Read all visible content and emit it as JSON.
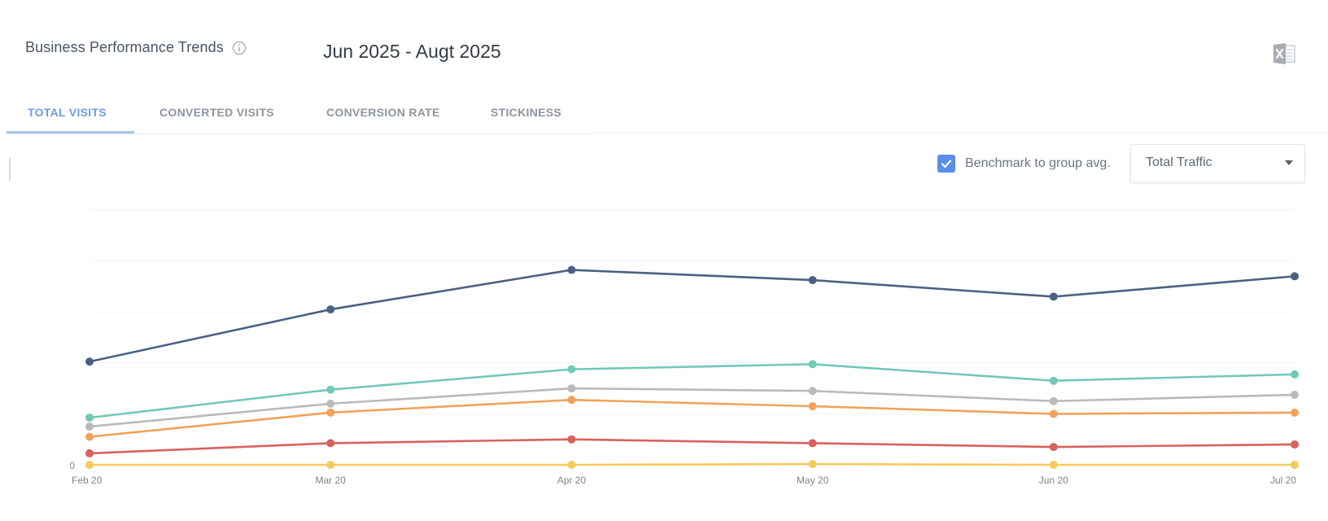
{
  "header": {
    "title": "Business Performance Trends",
    "date_range": "Jun 2025 - Augt 2025"
  },
  "icons": {
    "info": "info-icon",
    "export": "excel-export-icon",
    "checkbox": "check-icon",
    "dropdown": "chevron-down-icon"
  },
  "tabs": [
    {
      "label": "TOTAL VISITS",
      "active": true
    },
    {
      "label": "CONVERTED VISITS",
      "active": false
    },
    {
      "label": "CONVERSION RATE",
      "active": false
    },
    {
      "label": "STICKINESS",
      "active": false
    }
  ],
  "controls": {
    "benchmark_label": "Benchmark to group avg.",
    "benchmark_checked": true,
    "traffic_select_value": "Total Traffic"
  },
  "colors": {
    "accent": "#6f9be2",
    "checkbox": "#5b8ee8"
  },
  "chart_data": {
    "type": "line",
    "title": "",
    "xlabel": "",
    "ylabel": "",
    "categories": [
      "Feb 20",
      "Mar 20",
      "Apr 20",
      "May 20",
      "Jun 20",
      "Jul 20"
    ],
    "y_ticks": [
      0
    ],
    "ylim": [
      0,
      100
    ],
    "grid": true,
    "series": [
      {
        "name": "series-1",
        "color": "#4a6185",
        "values": [
          40.5,
          61,
          76.5,
          72.5,
          66,
          74
        ]
      },
      {
        "name": "series-2",
        "color": "#72c9b8",
        "values": [
          18.5,
          29.5,
          37.5,
          39.5,
          33,
          35.5
        ]
      },
      {
        "name": "series-3",
        "color": "#b8babd",
        "values": [
          15,
          24,
          30,
          29,
          25,
          27.5
        ]
      },
      {
        "name": "series-4",
        "color": "#f0a35a",
        "values": [
          11,
          20.5,
          25.5,
          23,
          20,
          20.5
        ]
      },
      {
        "name": "series-5",
        "color": "#d9625d",
        "values": [
          4.5,
          8.5,
          10,
          8.5,
          7,
          8
        ]
      },
      {
        "name": "series-6",
        "color": "#f5ca5c",
        "values": [
          0,
          0,
          0,
          0.3,
          0,
          0
        ]
      }
    ]
  }
}
